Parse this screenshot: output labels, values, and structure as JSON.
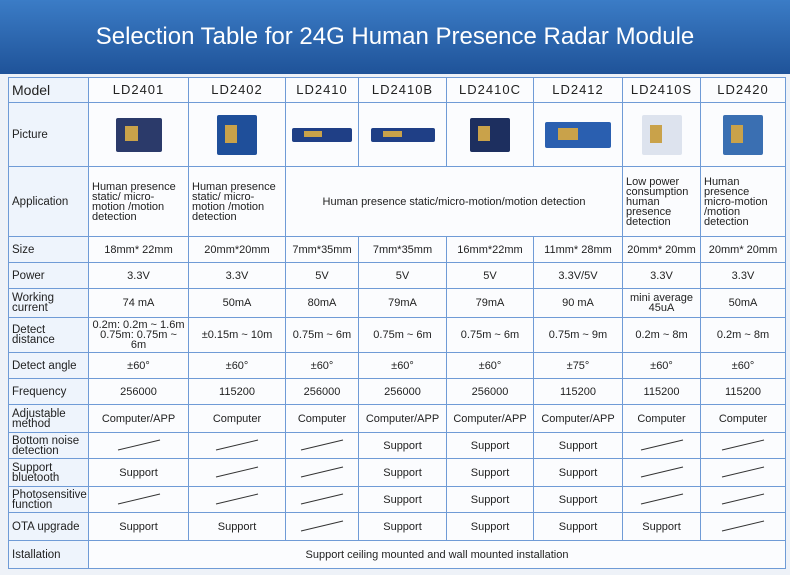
{
  "header": {
    "title": "Selection Table for 24G Human Presence Radar Module"
  },
  "table": {
    "rows": [
      {
        "label": "Model",
        "cells": [
          "LD2401",
          "LD2402",
          "LD2410",
          "LD2410B",
          "LD2410C",
          "LD2412",
          "LD2410S",
          "LD2420"
        ]
      },
      {
        "label": "Picture"
      },
      {
        "label": "Application",
        "cells": [
          "Human presence static/ micro-motion /motion detection",
          "Human presence static/ micro-motion /motion detection",
          "Human presence static/micro-motion/motion detection",
          "Low power consumption human presence detection",
          "Human presence micro-motion /motion detection"
        ]
      },
      {
        "label": "Size",
        "cells": [
          "18mm* 22mm",
          "20mm*20mm",
          "7mm*35mm",
          "7mm*35mm",
          "16mm*22mm",
          "11mm* 28mm",
          "20mm* 20mm",
          "20mm* 20mm"
        ]
      },
      {
        "label": "Power",
        "cells": [
          "3.3V",
          "3.3V",
          "5V",
          "5V",
          "5V",
          "3.3V/5V",
          "3.3V",
          "3.3V"
        ]
      },
      {
        "label": "Working current",
        "cells": [
          "74 mA",
          "50mA",
          "80mA",
          "79mA",
          "79mA",
          "90 mA",
          "mini average 45uA",
          "50mA"
        ]
      },
      {
        "label": "Detect distance",
        "cells": [
          "0.2m: 0.2m ~ 1.6m\n0.75m: 0.75m ~ 6m",
          "±0.15m ~ 10m",
          "0.75m ~ 6m",
          "0.75m ~ 6m",
          "0.75m ~ 6m",
          "0.75m ~ 9m",
          "0.2m ~ 8m",
          "0.2m ~ 8m"
        ]
      },
      {
        "label": "Detect angle",
        "cells": [
          "±60°",
          "±60°",
          "±60°",
          "±60°",
          "±60°",
          "±75°",
          "±60°",
          "±60°"
        ]
      },
      {
        "label": "Frequency",
        "cells": [
          "256000",
          "115200",
          "256000",
          "256000",
          "256000",
          "115200",
          "115200",
          "115200"
        ]
      },
      {
        "label": "Adjustable method",
        "cells": [
          "Computer/APP",
          "Computer",
          "Computer",
          "Computer/APP",
          "Computer/APP",
          "Computer/APP",
          "Computer",
          "Computer"
        ]
      },
      {
        "label": "Bottom noise detection",
        "cells": [
          null,
          null,
          null,
          "Support",
          "Support",
          "Support",
          null,
          null
        ]
      },
      {
        "label": "Support bluetooth",
        "cells": [
          "Support",
          null,
          null,
          "Support",
          "Support",
          "Support",
          null,
          null
        ]
      },
      {
        "label": "Photosensitive function",
        "cells": [
          null,
          null,
          null,
          "Support",
          "Support",
          "Support",
          null,
          null
        ]
      },
      {
        "label": "OTA upgrade",
        "cells": [
          "Support",
          "Support",
          null,
          "Support",
          "Support",
          "Support",
          "Support",
          null
        ]
      },
      {
        "label": "Istallation",
        "cells": [
          "Support ceiling mounted and wall mounted installation"
        ]
      }
    ]
  }
}
